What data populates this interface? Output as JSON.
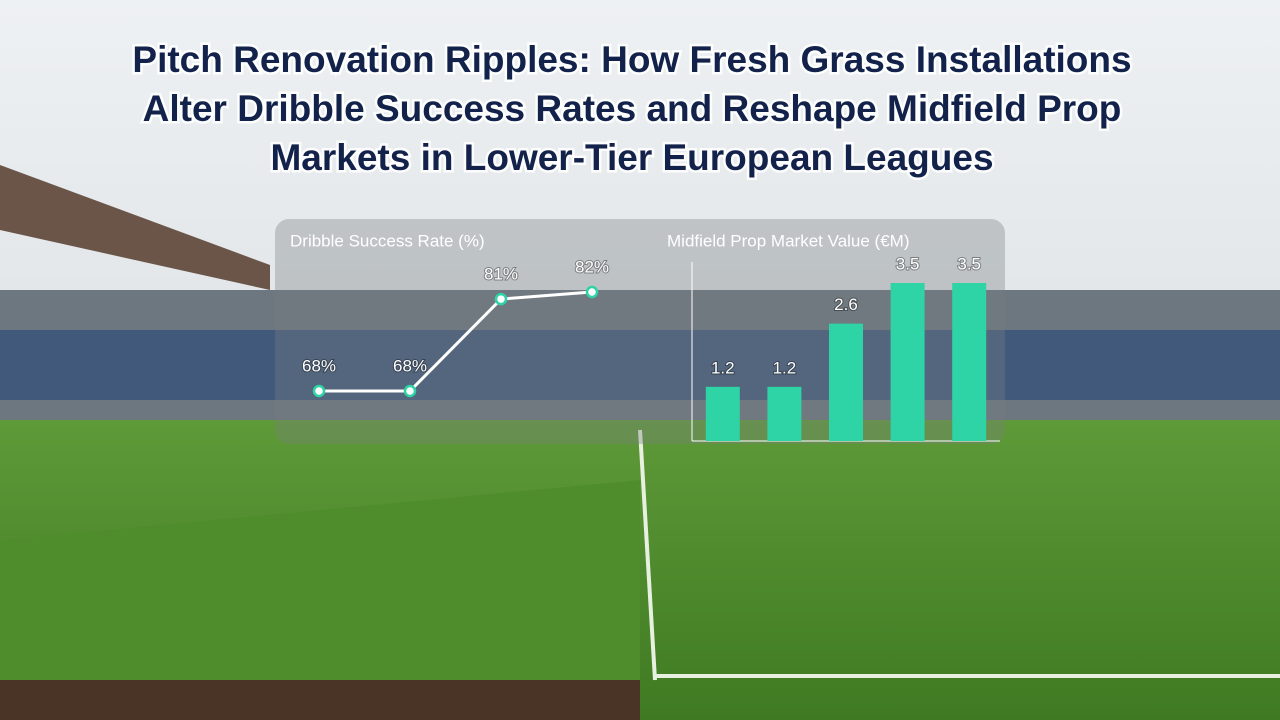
{
  "title": [
    "Pitch Renovation Ripples: How Fresh Grass Installations",
    "Alter Dribble Success Rates and Reshape Midfield Prop",
    "Markets in Lower-Tier European Leagues"
  ],
  "chart_data": [
    {
      "type": "line",
      "title": "Dribble Success Rate (%)",
      "categories": [
        null,
        null,
        null,
        null
      ],
      "values": [
        68,
        68,
        81,
        82
      ],
      "value_labels": [
        "68%",
        "68%",
        "81%",
        "82%"
      ],
      "color": "#ffffff",
      "marker_color": "#2ed3a6"
    },
    {
      "type": "bar",
      "title": "Midfield Prop Market Value (€M)",
      "categories": [
        null,
        null,
        null,
        null,
        null
      ],
      "values": [
        1.2,
        1.2,
        2.6,
        3.5,
        3.5
      ],
      "color": "#2ed3a6"
    }
  ]
}
